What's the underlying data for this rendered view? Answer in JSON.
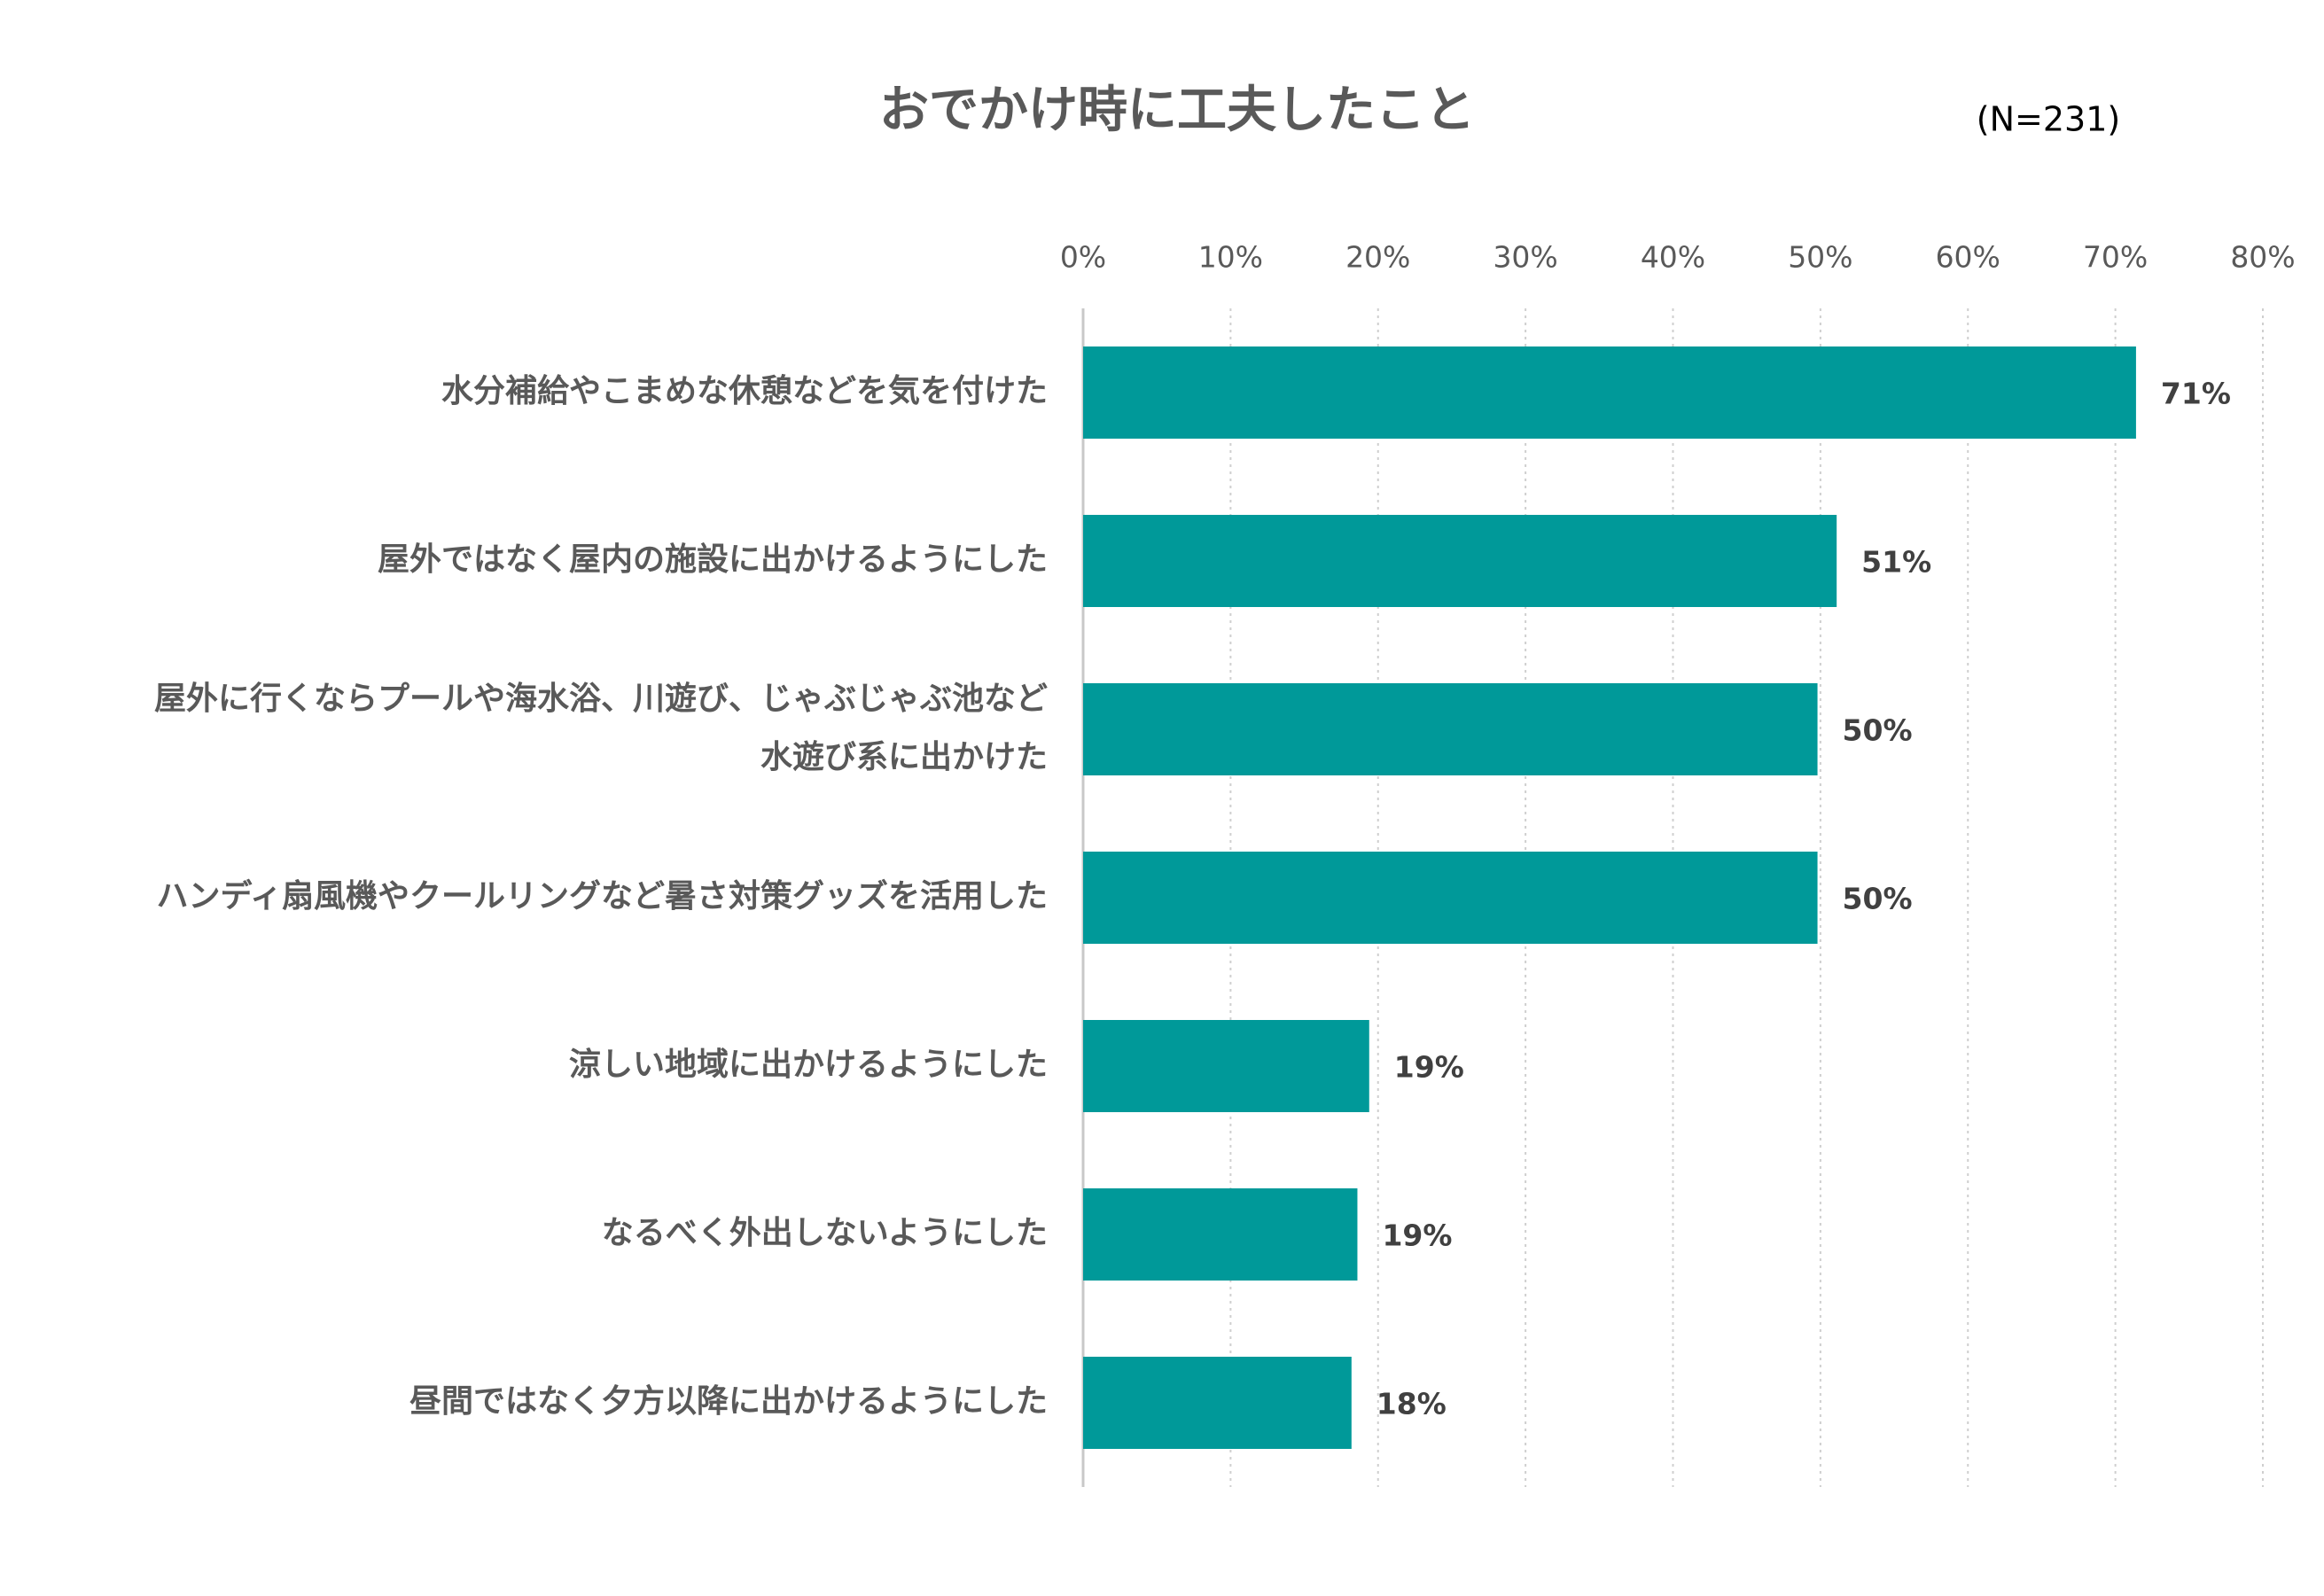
{
  "chart_data": {
    "type": "bar",
    "orientation": "horizontal",
    "title": "おでかけ時に工夫したこと",
    "subtitle": "(N=231)",
    "categories": [
      "水分補給やこまめな休憩などを気を付けた",
      "屋外ではなく屋内の施設に出かけるようにした",
      "屋外に行くならプールや海水浴、川遊び、じゃぶじゃぶ池など\n水遊び系に出かけた",
      "ハンディ扇風機やクールリングなど暑さ対策グッズを活用した",
      "涼しい地域に出かけるようにした",
      "なるべく外出しないようにした",
      "昼間ではなく夕方以降に出かけるようにした"
    ],
    "values": [
      71.4,
      51.1,
      49.8,
      49.8,
      19.4,
      18.6,
      18.2
    ],
    "value_labels": [
      "71%",
      "51%",
      "50%",
      "50%",
      "19%",
      "19%",
      "18%"
    ],
    "color": "#009999",
    "xlim": [
      0,
      80
    ],
    "xticks": [
      {
        "value": 0,
        "label": "0%"
      },
      {
        "value": 10,
        "label": "10%"
      },
      {
        "value": 20,
        "label": "20%"
      },
      {
        "value": 30,
        "label": "30%"
      },
      {
        "value": 40,
        "label": "40%"
      },
      {
        "value": 50,
        "label": "50%"
      },
      {
        "value": 60,
        "label": "60%"
      },
      {
        "value": 70,
        "label": "70%"
      },
      {
        "value": 80,
        "label": "80%"
      }
    ],
    "grid": true
  }
}
